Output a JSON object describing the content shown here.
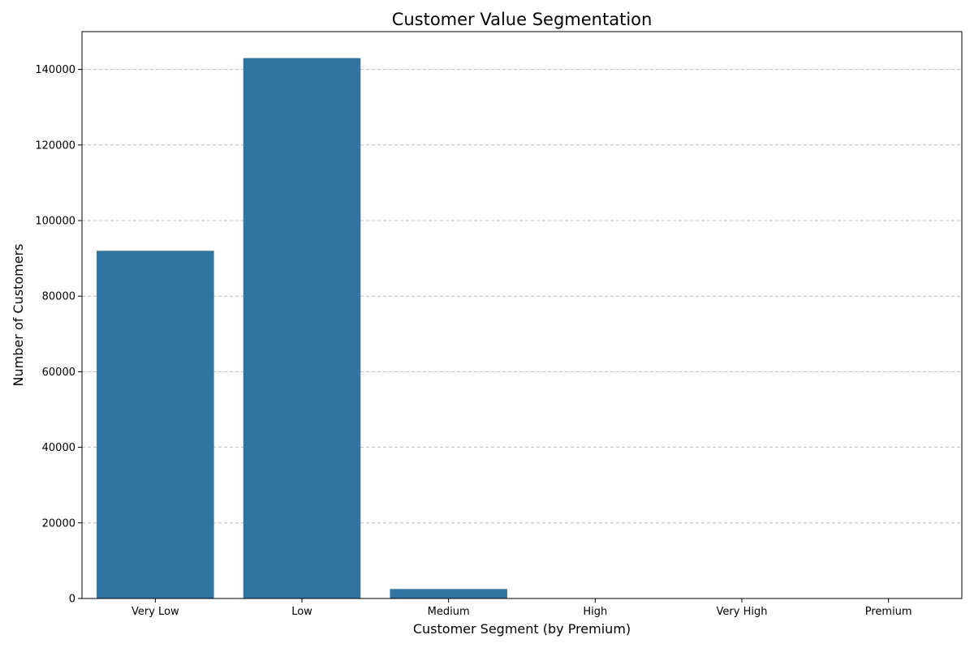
{
  "chart_data": {
    "type": "bar",
    "title": "Customer Value Segmentation",
    "xlabel": "Customer Segment (by Premium)",
    "ylabel": "Number of Customers",
    "categories": [
      "Very Low",
      "Low",
      "Medium",
      "High",
      "Very High",
      "Premium"
    ],
    "values": [
      92000,
      143000,
      2500,
      0,
      0,
      0
    ],
    "ylim": [
      0,
      150000
    ],
    "yticks": [
      0,
      20000,
      40000,
      60000,
      80000,
      100000,
      120000,
      140000
    ],
    "ytick_labels": [
      "0",
      "20000",
      "40000",
      "60000",
      "80000",
      "100000",
      "120000",
      "140000"
    ],
    "grid": "y-dashed",
    "bar_color": "#3274a1"
  }
}
